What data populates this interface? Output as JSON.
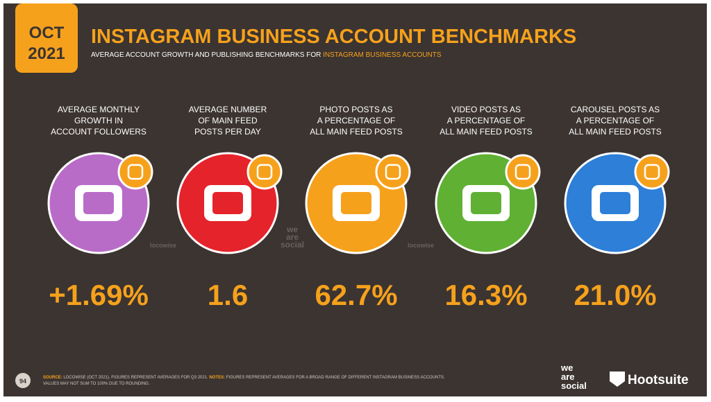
{
  "badge": {
    "month": "OCT",
    "year": "2021"
  },
  "title": "INSTAGRAM BUSINESS ACCOUNT BENCHMARKS",
  "subtitle": {
    "text": "AVERAGE ACCOUNT GROWTH AND PUBLISHING BENCHMARKS FOR ",
    "highlight": "INSTAGRAM BUSINESS ACCOUNTS"
  },
  "cards": [
    {
      "label": [
        "AVERAGE MONTHLY",
        "GROWTH IN",
        "ACCOUNT FOLLOWERS"
      ],
      "value": "+1.69%",
      "color": "#b86cc8",
      "watermark": [
        "locowise"
      ]
    },
    {
      "label": [
        "AVERAGE NUMBER",
        "OF MAIN FEED",
        "POSTS PER DAY"
      ],
      "value": "1.6",
      "color": "#e5232b",
      "watermark": [
        "we",
        "are",
        "social"
      ]
    },
    {
      "label": [
        "PHOTO POSTS AS",
        "A PERCENTAGE OF",
        "ALL MAIN FEED POSTS"
      ],
      "value": "62.7%",
      "color": "#f6a11c",
      "watermark": [
        "locowise"
      ]
    },
    {
      "label": [
        "VIDEO POSTS AS",
        "A PERCENTAGE OF",
        "ALL MAIN FEED POSTS"
      ],
      "value": "16.3%",
      "color": "#5fb033"
    },
    {
      "label": [
        "CAROUSEL POSTS AS",
        "A PERCENTAGE OF",
        "ALL MAIN FEED POSTS"
      ],
      "value": "21.0%",
      "color": "#2d7fd8"
    }
  ],
  "footer": {
    "page": "94",
    "source_label": "SOURCE:",
    "source": " LOCOWISE (OCT 2021). FIGURES REPRESENT AVERAGES FOR Q3 2021. ",
    "notes_label": "NOTES:",
    "notes": " FIGURES REPRESENT AVERAGES FOR A BROAD RANGE OF DIFFERENT INSTAGRAM BUSINESS ACCOUNTS.",
    "line2": "VALUES MAY NOT SUM TO 100% DUE TO ROUNDING.",
    "logo_was": [
      "we",
      "are",
      "social"
    ],
    "logo_hootsuite": "Hootsuite"
  }
}
